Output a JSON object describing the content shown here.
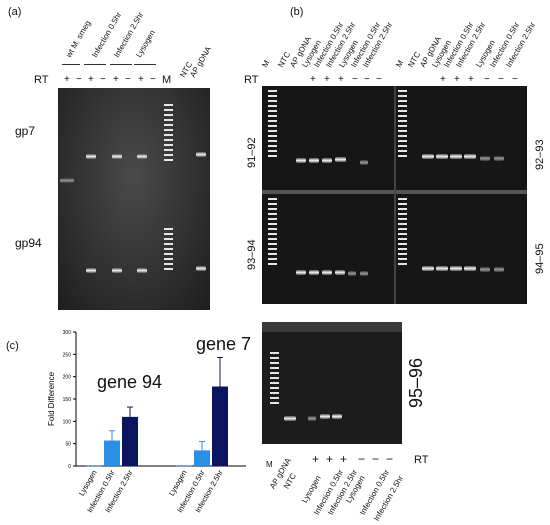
{
  "panel_a": {
    "label": "(a)",
    "headers": [
      "wt M. smeg",
      "Infection 0.5hr",
      "Infection 2.5hr",
      "Lysogen",
      "NTC",
      "AP gDNA"
    ],
    "rt_label": "RT",
    "rt_signs": [
      "+",
      "−",
      "+",
      "−",
      "+",
      "−",
      "+",
      "−"
    ],
    "marker": "M",
    "rows": [
      "gp7",
      "gp94"
    ]
  },
  "panel_b": {
    "label": "(b)",
    "lanes": [
      "M",
      "NTC",
      "AP gDNA",
      "Lysogen",
      "Infection 0.5hr",
      "Infection 2.5hr",
      "Lysogen",
      "Infection 0.5hr",
      "Infection 2.5hr"
    ],
    "rt_label": "RT",
    "rt_signs": [
      "+",
      "+",
      "+",
      "−",
      "−",
      "−"
    ],
    "regions": [
      "91–92",
      "92–93",
      "93–94",
      "94–95",
      "95–96"
    ]
  },
  "panel_c": {
    "label": "(c)",
    "ylabel": "Fold Difference",
    "gene_labels": [
      "gene 94",
      "gene 7"
    ]
  },
  "chart_data": {
    "type": "bar",
    "ylabel": "Fold Difference",
    "ylim": [
      0,
      300
    ],
    "yticks": [
      0,
      50,
      100,
      150,
      200,
      250,
      300
    ],
    "groups": [
      {
        "name": "gene 94",
        "categories": [
          "Lysogen",
          "Infection 0.5hr",
          "Infection 2.5hr"
        ],
        "values": [
          1,
          57,
          110
        ],
        "errors": [
          0,
          22,
          22
        ],
        "colors": [
          "#1e4fa0",
          "#2b8fe8",
          "#0b1460"
        ]
      },
      {
        "name": "gene 7",
        "categories": [
          "Lysogen",
          "Infection 0.5hr",
          "Infection 2.5hr"
        ],
        "values": [
          1,
          35,
          178
        ],
        "errors": [
          0,
          20,
          65
        ],
        "colors": [
          "#1e4fa0",
          "#2b8fe8",
          "#0b1460"
        ]
      }
    ]
  },
  "colors": {
    "gel_bg": "#1a1a1a",
    "band": "#f4f4f4",
    "bar_light": "#2b8fe8",
    "bar_dark": "#0b1460"
  }
}
